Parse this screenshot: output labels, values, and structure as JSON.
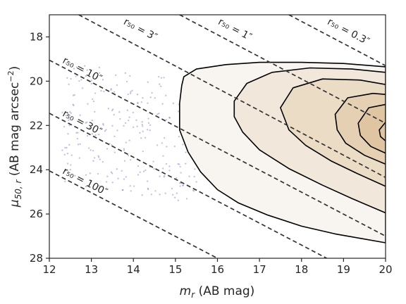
{
  "chart_data": {
    "type": "scatter",
    "xlabel": {
      "main": "m",
      "sub": "r",
      "unit": " (AB mag)"
    },
    "ylabel": {
      "main": "μ",
      "sub": "50, r",
      "unit": " (AB mag arcsec",
      "sup": "−2",
      "close": ")"
    },
    "xlim": [
      12,
      20
    ],
    "ylim": [
      28,
      17
    ],
    "y_inverted": true,
    "x_ticks": [
      "12",
      "13",
      "14",
      "15",
      "16",
      "17",
      "18",
      "19",
      "20"
    ],
    "y_ticks": [
      "18",
      "20",
      "22",
      "24",
      "26",
      "28"
    ],
    "grid": false,
    "point_color": "#4b4bb0",
    "line_color": "#333333",
    "contour_colors": [
      "#f8f4ef",
      "#f1e7da",
      "#ebdcc6",
      "#e5d0b3",
      "#dfc5a1"
    ],
    "reference_lines": [
      {
        "label": "r₅₀ = 100″",
        "x1": 12,
        "y1": 24.05,
        "x2": 16,
        "y2": 28.0
      },
      {
        "label": "r₅₀ = 30″",
        "x1": 12,
        "y1": 21.45,
        "x2": 18.6,
        "y2": 28.0
      },
      {
        "label": "r₅₀ = 10″",
        "x1": 12,
        "y1": 19.05,
        "x2": 20,
        "y2": 27.0
      },
      {
        "label": "r₅₀ = 3″",
        "x1": 12.7,
        "y1": 17.0,
        "x2": 20,
        "y2": 24.35
      },
      {
        "label": "r₅₀ = 1″",
        "x1": 15.1,
        "y1": 17.0,
        "x2": 20,
        "y2": 21.9
      },
      {
        "label": "r₅₀ = 0.3″",
        "x1": 17.7,
        "y1": 17.0,
        "x2": 20,
        "y2": 19.3
      }
    ],
    "contours": [
      [
        [
          15.2,
          19.8
        ],
        [
          15.5,
          19.45
        ],
        [
          16.2,
          19.25
        ],
        [
          17,
          19.15
        ],
        [
          18,
          19.15
        ],
        [
          19,
          19.2
        ],
        [
          20,
          19.35
        ],
        [
          20,
          27.3
        ],
        [
          19.4,
          27.1
        ],
        [
          18.8,
          26.9
        ],
        [
          18,
          26.55
        ],
        [
          17.2,
          26.05
        ],
        [
          16.5,
          25.5
        ],
        [
          16,
          24.9
        ],
        [
          15.6,
          24.1
        ],
        [
          15.3,
          23.2
        ],
        [
          15.1,
          22.2
        ],
        [
          15.1,
          21
        ],
        [
          15.15,
          20.2
        ]
      ],
      [
        [
          16.4,
          20.9
        ],
        [
          16.7,
          20.1
        ],
        [
          17.3,
          19.6
        ],
        [
          18.2,
          19.4
        ],
        [
          19.2,
          19.45
        ],
        [
          20,
          19.6
        ],
        [
          20,
          25.95
        ],
        [
          19.2,
          25.3
        ],
        [
          18.5,
          24.7
        ],
        [
          17.7,
          23.95
        ],
        [
          17,
          23.1
        ],
        [
          16.6,
          22.3
        ],
        [
          16.4,
          21.6
        ]
      ],
      [
        [
          17.5,
          21.2
        ],
        [
          17.8,
          20.3
        ],
        [
          18.5,
          19.9
        ],
        [
          19.4,
          19.95
        ],
        [
          20,
          20.15
        ],
        [
          20,
          24.75
        ],
        [
          19.3,
          24.15
        ],
        [
          18.7,
          23.6
        ],
        [
          18.1,
          22.9
        ],
        [
          17.7,
          22.2
        ]
      ],
      [
        [
          18.8,
          21.5
        ],
        [
          19.1,
          20.75
        ],
        [
          19.7,
          20.55
        ],
        [
          20,
          20.6
        ],
        [
          20,
          23.75
        ],
        [
          19.5,
          23.35
        ],
        [
          19.05,
          22.8
        ],
        [
          18.85,
          22.2
        ]
      ],
      [
        [
          19.35,
          21.9
        ],
        [
          19.6,
          21.2
        ],
        [
          20,
          21.05
        ],
        [
          20,
          23.25
        ],
        [
          19.65,
          22.95
        ],
        [
          19.4,
          22.45
        ]
      ],
      [
        [
          19.85,
          22.2
        ],
        [
          20,
          21.85
        ],
        [
          20,
          22.7
        ],
        [
          19.88,
          22.5
        ]
      ]
    ]
  }
}
